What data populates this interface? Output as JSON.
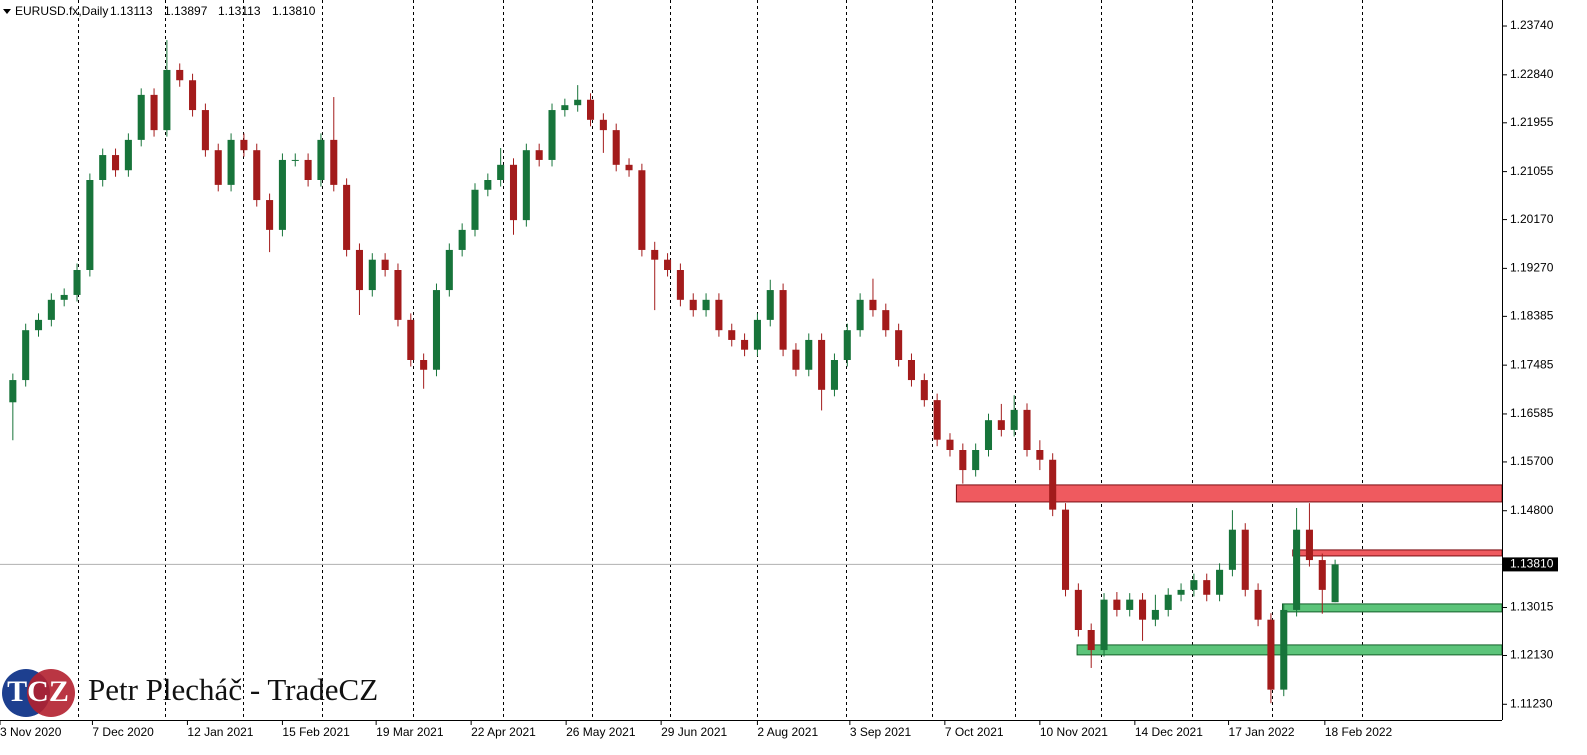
{
  "chart_data": {
    "type": "candlestick",
    "symbol": "EURUSD.fx,Daily",
    "ohlc_labels": [
      "1.13113",
      "1.13897",
      "1.13113",
      "1.13810"
    ],
    "open": [
      1.168,
      1.1721,
      1.1813,
      1.1832,
      1.1869,
      1.1878,
      1.1924,
      1.209,
      1.2136,
      1.2108,
      1.2164,
      1.2247,
      1.2182,
      1.2293,
      1.2274,
      1.2219,
      1.2145,
      1.2081,
      1.2164,
      1.2145,
      1.2053,
      1.1998,
      1.2127,
      1.2127,
      1.209,
      1.2164,
      1.2081,
      1.1961,
      1.1887,
      1.1943,
      1.1924,
      1.1832,
      1.1758,
      1.174,
      1.1887,
      1.1961,
      1.1998,
      1.2072,
      1.209,
      1.2118,
      1.2016,
      1.2145,
      1.2127,
      1.2219,
      1.2228,
      1.2238,
      1.2201,
      1.2182,
      1.2118,
      1.2108,
      1.1961,
      1.1943,
      1.1924,
      1.1869,
      1.185,
      1.1869,
      1.1813,
      1.1795,
      1.1777,
      1.1832,
      1.1887,
      1.1777,
      1.174,
      1.1795,
      1.1703,
      1.1758,
      1.1813,
      1.1869,
      1.185,
      1.1813,
      1.1758,
      1.1721,
      1.1684,
      1.1611,
      1.1592,
      1.1555,
      1.1592,
      1.1647,
      1.1629,
      1.1666,
      1.1592,
      1.1574,
      1.1482,
      1.1334,
      1.126,
      1.1223,
      1.1316,
      1.1297,
      1.1316,
      1.1279,
      1.1297,
      1.1325,
      1.1334,
      1.1352,
      1.1325,
      1.1371,
      1.1445,
      1.1334,
      1.1279,
      1.115,
      1.1297,
      1.1445,
      1.1389,
      1.13113
    ],
    "high": [
      1.1733,
      1.1825,
      1.1844,
      1.1881,
      1.189,
      1.1936,
      1.2102,
      1.2148,
      1.2148,
      1.2176,
      1.2259,
      1.2259,
      1.2348,
      1.2305,
      1.2286,
      1.2231,
      1.2157,
      1.2176,
      1.2176,
      1.2157,
      1.2065,
      1.2139,
      1.2139,
      1.2139,
      1.2176,
      1.2243,
      1.2093,
      1.1973,
      1.1955,
      1.1955,
      1.1936,
      1.1844,
      1.177,
      1.1899,
      1.1973,
      1.201,
      1.2084,
      1.2102,
      1.2149,
      1.213,
      1.2157,
      1.2157,
      1.2231,
      1.224,
      1.2265,
      1.225,
      1.2213,
      1.2194,
      1.213,
      1.212,
      1.1976,
      1.1955,
      1.1936,
      1.1881,
      1.1881,
      1.1881,
      1.1825,
      1.1807,
      1.1844,
      1.1906,
      1.1899,
      1.1789,
      1.1807,
      1.1807,
      1.177,
      1.1825,
      1.1881,
      1.1908,
      1.1862,
      1.1825,
      1.177,
      1.1733,
      1.1696,
      1.1623,
      1.1604,
      1.1604,
      1.1659,
      1.1677,
      1.1693,
      1.1678,
      1.161,
      1.1586,
      1.1494,
      1.1346,
      1.1272,
      1.1328,
      1.133,
      1.1328,
      1.1328,
      1.1325,
      1.1337,
      1.1346,
      1.1364,
      1.1364,
      1.1383,
      1.1481,
      1.1457,
      1.1346,
      1.1291,
      1.1309,
      1.1485,
      1.1494,
      1.1401,
      1.13897
    ],
    "low": [
      1.161,
      1.1709,
      1.1801,
      1.182,
      1.1857,
      1.1866,
      1.1912,
      1.2078,
      1.2096,
      1.2096,
      1.2152,
      1.217,
      1.217,
      1.2262,
      1.2207,
      1.2133,
      1.2069,
      1.2069,
      1.2133,
      1.2041,
      1.1957,
      1.1986,
      1.2115,
      1.2078,
      1.2078,
      1.2069,
      1.1949,
      1.1841,
      1.1875,
      1.1912,
      1.182,
      1.1746,
      1.1705,
      1.1728,
      1.1875,
      1.1949,
      1.1986,
      1.206,
      1.2078,
      1.1989,
      1.2004,
      1.2115,
      1.2115,
      1.2207,
      1.2216,
      1.2189,
      1.214,
      1.2106,
      1.2096,
      1.1949,
      1.185,
      1.1912,
      1.1857,
      1.1838,
      1.1838,
      1.1801,
      1.1783,
      1.1765,
      1.1765,
      1.182,
      1.1765,
      1.1728,
      1.1728,
      1.1665,
      1.1691,
      1.1746,
      1.1801,
      1.1838,
      1.1801,
      1.1746,
      1.1709,
      1.1672,
      1.1599,
      1.158,
      1.153,
      1.1543,
      1.158,
      1.1617,
      1.1617,
      1.158,
      1.1555,
      1.147,
      1.1322,
      1.1248,
      1.119,
      1.1211,
      1.1285,
      1.1285,
      1.124,
      1.1267,
      1.1285,
      1.1313,
      1.1322,
      1.1313,
      1.1313,
      1.1359,
      1.1322,
      1.1267,
      1.1125,
      1.1138,
      1.1285,
      1.1377,
      1.129,
      1.13113
    ],
    "close": [
      1.1721,
      1.1813,
      1.1832,
      1.1869,
      1.1878,
      1.1924,
      1.209,
      1.2136,
      1.2108,
      1.2164,
      1.2247,
      1.2182,
      1.2293,
      1.2274,
      1.2219,
      1.2145,
      1.2081,
      1.2164,
      1.2145,
      1.2053,
      1.1998,
      1.2127,
      1.2127,
      1.209,
      1.2164,
      1.2081,
      1.1961,
      1.1887,
      1.1943,
      1.1924,
      1.1832,
      1.1758,
      1.174,
      1.1887,
      1.1961,
      1.1998,
      1.2072,
      1.209,
      1.2118,
      1.2016,
      1.2145,
      1.2127,
      1.2219,
      1.2228,
      1.2238,
      1.2201,
      1.2182,
      1.2118,
      1.2108,
      1.1961,
      1.1943,
      1.1924,
      1.1869,
      1.185,
      1.1869,
      1.1813,
      1.1795,
      1.1777,
      1.1832,
      1.1887,
      1.1777,
      1.174,
      1.1795,
      1.1703,
      1.1758,
      1.1813,
      1.1869,
      1.185,
      1.1813,
      1.1758,
      1.1721,
      1.1684,
      1.1611,
      1.1592,
      1.1555,
      1.1592,
      1.1647,
      1.1629,
      1.1666,
      1.1592,
      1.1574,
      1.1482,
      1.1334,
      1.126,
      1.1223,
      1.1316,
      1.1297,
      1.1316,
      1.1279,
      1.1297,
      1.1325,
      1.1334,
      1.1352,
      1.1325,
      1.1371,
      1.1445,
      1.1334,
      1.1279,
      1.115,
      1.1297,
      1.1445,
      1.1389,
      1.1334,
      1.1381
    ],
    "up_color": "#17743a",
    "down_color": "#a31b1b",
    "xlim": [
      -1,
      116
    ],
    "xticks": [
      {
        "value": -1,
        "label": "3 Nov 2020"
      },
      {
        "value": 6.2,
        "label": "7 Dec 2020"
      },
      {
        "value": 13.6,
        "label": "12 Jan 2021"
      },
      {
        "value": 21.0,
        "label": "15 Feb 2021"
      },
      {
        "value": 28.3,
        "label": "19 Mar 2021"
      },
      {
        "value": 35.7,
        "label": "22 Apr 2021"
      },
      {
        "value": 43.1,
        "label": "26 May 2021"
      },
      {
        "value": 50.5,
        "label": "29 Jun 2021"
      },
      {
        "value": 58.0,
        "label": "2 Aug 2021"
      },
      {
        "value": 65.2,
        "label": "3 Sep 2021"
      },
      {
        "value": 72.6,
        "label": "7 Oct 2021"
      },
      {
        "value": 80.0,
        "label": "10 Nov 2021"
      },
      {
        "value": 87.4,
        "label": "14 Dec 2021"
      },
      {
        "value": 94.7,
        "label": "17 Jan 2022"
      },
      {
        "value": 102.2,
        "label": "18 Feb 2022"
      }
    ],
    "ylim": [
      1.1094,
      1.2422
    ],
    "yticks": [
      {
        "value": 1.2374,
        "label": "1.23740"
      },
      {
        "value": 1.2284,
        "label": "1.22840"
      },
      {
        "value": 1.21955,
        "label": "1.21955"
      },
      {
        "value": 1.21055,
        "label": "1.21055"
      },
      {
        "value": 1.2017,
        "label": "1.20170"
      },
      {
        "value": 1.1927,
        "label": "1.19270"
      },
      {
        "value": 1.18385,
        "label": "1.18385"
      },
      {
        "value": 1.17485,
        "label": "1.17485"
      },
      {
        "value": 1.16585,
        "label": "1.16585"
      },
      {
        "value": 1.157,
        "label": "1.15700"
      },
      {
        "value": 1.148,
        "label": "1.14800"
      },
      {
        "value": 1.13015,
        "label": "1.13015"
      },
      {
        "value": 1.1213,
        "label": "1.12130"
      },
      {
        "value": 1.1123,
        "label": "1.11230"
      }
    ],
    "current_price": {
      "value": 1.1381,
      "label": "1.13810"
    },
    "zones": [
      {
        "from": 73.5,
        "low": 1.14962,
        "high": 1.15276,
        "color": "#ef5a5f",
        "border": "#7a0d12"
      },
      {
        "from": 99.7,
        "low": 1.13966,
        "high": 1.14077,
        "color": "#ef5a5f",
        "border": "#7a0d12"
      },
      {
        "from": 98.9,
        "low": 1.12934,
        "high": 1.13081,
        "color": "#5cc47a",
        "border": "#14602a"
      },
      {
        "from": 82.9,
        "low": 1.12141,
        "high": 1.12325,
        "color": "#5cc47a",
        "border": "#14602a"
      }
    ],
    "logo": "TCZ",
    "watermark": "Petr Plecháč - TradeCZ"
  }
}
